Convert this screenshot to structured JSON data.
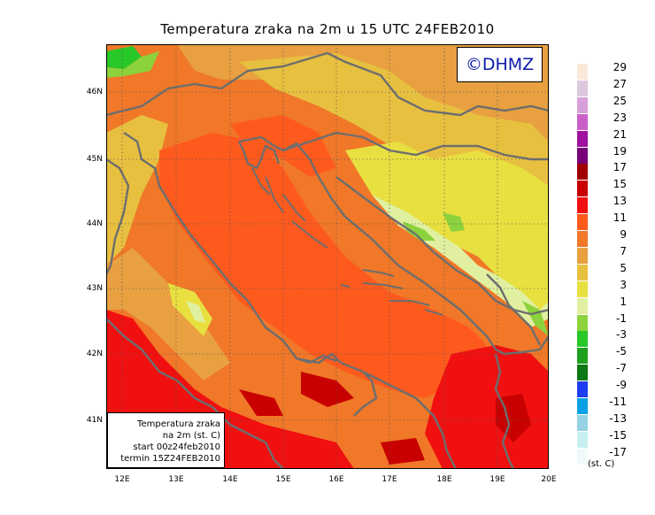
{
  "title": "Temperatura zraka na 2m u 15 UTC 24FEB2010",
  "logo_text": "©DHMZ",
  "infobox": {
    "line1": "Temperatura zraka",
    "line2": "na 2m (st. C)",
    "line3": "start 00z24feb2010",
    "line4": "termin 15Z24FEB2010"
  },
  "lat_labels": [
    "46N",
    "45N",
    "44N",
    "43N",
    "42N",
    "41N"
  ],
  "lon_labels": [
    "12E",
    "13E",
    "14E",
    "15E",
    "16E",
    "17E",
    "18E",
    "19E",
    "20E"
  ],
  "legend": {
    "units": "(st. C)",
    "labels": [
      "29",
      "27",
      "25",
      "23",
      "21",
      "19",
      "17",
      "15",
      "13",
      "11",
      "9",
      "7",
      "5",
      "3",
      "1",
      "-1",
      "-3",
      "-5",
      "-7",
      "-9",
      "-11",
      "-13",
      "-15",
      "-17"
    ],
    "colors": [
      "#fbe8d8",
      "#dcc8dc",
      "#d8a0d8",
      "#c860c8",
      "#a010a0",
      "#780078",
      "#a00000",
      "#c80000",
      "#f01010",
      "#ff5a1e",
      "#f07828",
      "#e8a040",
      "#e8c040",
      "#e8e040",
      "#e0f0a0",
      "#8cd23c",
      "#28c828",
      "#1ea01e",
      "#0a7814",
      "#1e3cf0",
      "#0aa0e6",
      "#96d2e6",
      "#c8f0f0",
      "#f0fafa"
    ]
  }
}
